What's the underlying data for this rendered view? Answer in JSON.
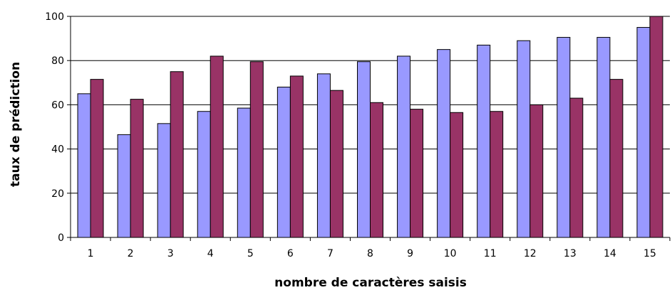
{
  "chart_data": {
    "type": "bar",
    "title": "",
    "xlabel": "nombre de caractères saisis",
    "ylabel": "taux de prédiction",
    "categories": [
      "1",
      "2",
      "3",
      "4",
      "5",
      "6",
      "7",
      "8",
      "9",
      "10",
      "11",
      "12",
      "13",
      "14",
      "15"
    ],
    "series": [
      {
        "color": "#9999ff",
        "values": [
          65,
          46.5,
          51.5,
          57,
          58.5,
          68,
          74,
          79.5,
          82,
          85,
          87,
          89,
          90.5,
          90.5,
          95
        ]
      },
      {
        "color": "#993366",
        "values": [
          71.5,
          62.5,
          75,
          82,
          79.5,
          73,
          66.5,
          61,
          58,
          56.5,
          57,
          60,
          63,
          71.5,
          100
        ]
      }
    ],
    "ylim": [
      0,
      100
    ],
    "yticks": [
      0,
      20,
      40,
      60,
      80,
      100
    ],
    "grid": true,
    "legend": "none"
  }
}
